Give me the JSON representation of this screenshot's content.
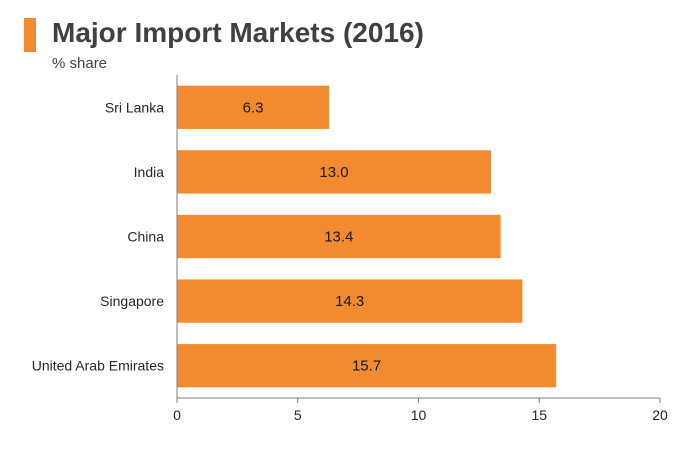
{
  "header": {
    "title": "Major Import Markets (2016)",
    "subtitle": "% share"
  },
  "chart_data": {
    "type": "bar",
    "orientation": "horizontal",
    "title": "Major Import Markets (2016)",
    "subtitle": "% share",
    "categories": [
      "Sri Lanka",
      "India",
      "China",
      "Singapore",
      "United Arab Emirates"
    ],
    "values": [
      6.3,
      13.0,
      13.4,
      14.3,
      15.7
    ],
    "value_labels": [
      "6.3",
      "13.0",
      "13.4",
      "14.3",
      "15.7"
    ],
    "xlim": [
      0,
      20
    ],
    "xticks": [
      0,
      5,
      10,
      15,
      20
    ],
    "xlabel": "",
    "ylabel": "",
    "grid": false,
    "bar_color": "#f28b30"
  }
}
